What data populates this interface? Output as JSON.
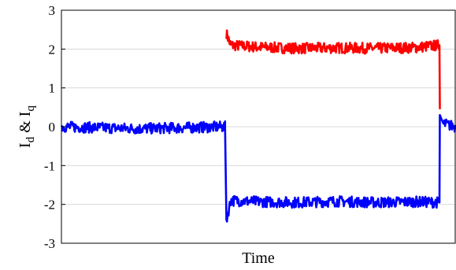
{
  "chart_data": {
    "type": "line",
    "xlabel": "Time",
    "ylabel_main": "I",
    "ylabel_sub_d": "d",
    "ylabel_amp": " & ",
    "ylabel_sub_q": "q",
    "ylim": [
      -3,
      3
    ],
    "yticks": [
      3,
      2,
      1,
      0,
      -1,
      -2,
      -3
    ],
    "grid": true,
    "x_ticks_shown": false,
    "x": [
      0.0,
      0.2,
      0.4155,
      0.419,
      0.43,
      0.5,
      0.6,
      0.7,
      0.8,
      0.9,
      0.96,
      0.961,
      0.97,
      1.0
    ],
    "series": [
      {
        "color": "#ff0000",
        "values": [
          null,
          null,
          null,
          2.4,
          2.1,
          2.05,
          2.02,
          2.03,
          2.02,
          2.04,
          2.1,
          0.45,
          null,
          null
        ]
      },
      {
        "color": "#0000ff",
        "values": [
          0.0,
          -0.05,
          0.0,
          -2.4,
          -1.9,
          -1.93,
          -1.95,
          -1.92,
          -1.95,
          -1.93,
          -1.95,
          0.3,
          0.08,
          0.0
        ]
      }
    ]
  }
}
